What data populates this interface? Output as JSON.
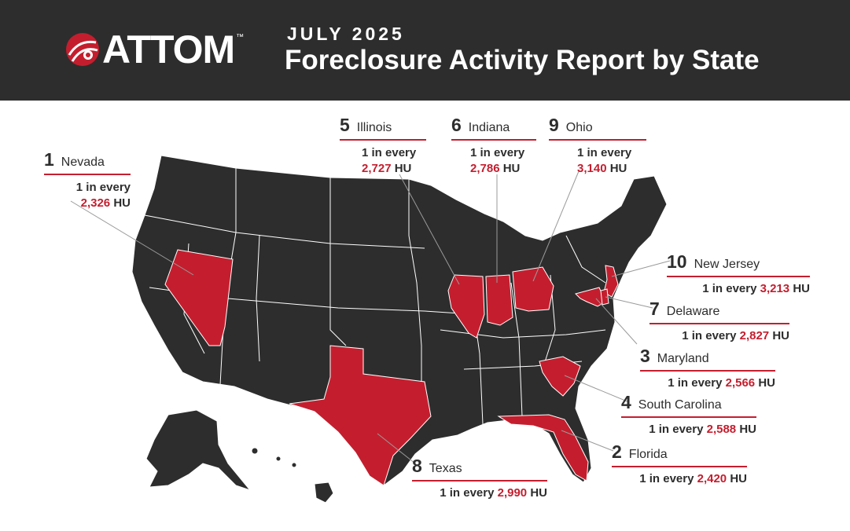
{
  "header": {
    "logo_text": "ATTOM",
    "logo_tm": "™",
    "date": "JULY 2025",
    "title": "Foreclosure Activity Report by State"
  },
  "colors": {
    "header_bg": "#2d2d2d",
    "state_fill": "#2d2d2d",
    "highlight": "#c41e2e",
    "border": "#ffffff"
  },
  "callouts": {
    "nevada": {
      "rank": "1",
      "state": "Nevada",
      "prefix": "1 in every",
      "value": "2,326",
      "unit": "HU"
    },
    "florida": {
      "rank": "2",
      "state": "Florida",
      "prefix": "1 in every",
      "value": "2,420",
      "unit": "HU"
    },
    "maryland": {
      "rank": "3",
      "state": "Maryland",
      "prefix": "1 in every",
      "value": "2,566",
      "unit": "HU"
    },
    "sc": {
      "rank": "4",
      "state": "South Carolina",
      "prefix": "1 in every",
      "value": "2,588",
      "unit": "HU"
    },
    "illinois": {
      "rank": "5",
      "state": "Illinois",
      "prefix": "1 in every",
      "value": "2,727",
      "unit": "HU"
    },
    "indiana": {
      "rank": "6",
      "state": "Indiana",
      "prefix": "1 in every",
      "value": "2,786",
      "unit": "HU"
    },
    "delaware": {
      "rank": "7",
      "state": "Delaware",
      "prefix": "1 in every",
      "value": "2,827",
      "unit": "HU"
    },
    "texas": {
      "rank": "8",
      "state": "Texas",
      "prefix": "1 in every",
      "value": "2,990",
      "unit": "HU"
    },
    "ohio": {
      "rank": "9",
      "state": "Ohio",
      "prefix": "1 in every",
      "value": "3,140",
      "unit": "HU"
    },
    "nj": {
      "rank": "10",
      "state": "New Jersey",
      "prefix": "1 in every",
      "value": "3,213",
      "unit": "HU"
    }
  }
}
